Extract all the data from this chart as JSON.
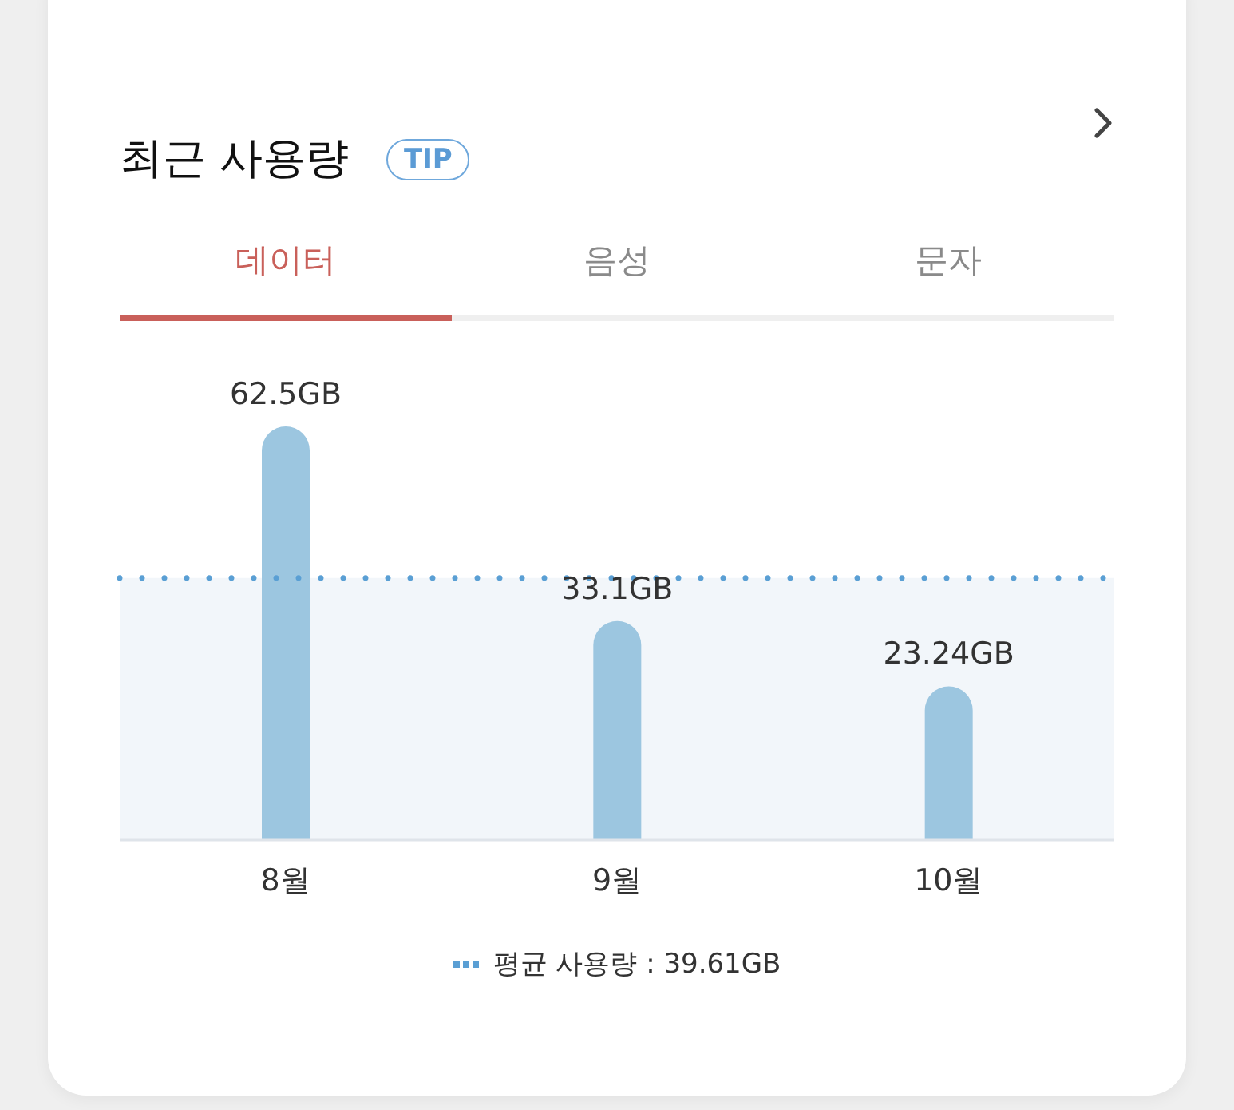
{
  "chart_data": {
    "type": "bar",
    "title": "최근 사용량",
    "subtitle": "TIP",
    "annotations": [
      "데이터",
      "음성",
      "문자"
    ],
    "categories": [
      "8월",
      "9월",
      "10월"
    ],
    "values": [
      62.5,
      33.1,
      23.24
    ],
    "color": "#9cc6e0",
    "value_labels": [
      "62.5GB",
      "33.1GB",
      "23.24GB"
    ],
    "ref_lines": [
      {
        "axis": "y",
        "value": 39.61,
        "label": "평균 사용량 : 39.61GB",
        "color": "#5a9fd4",
        "line_style": "dotted"
      }
    ],
    "bands": [
      {
        "axis": "y",
        "from": 0,
        "to": 39.61,
        "color": "#f2f6fa"
      }
    ],
    "tick_labels": "x"
  }
}
